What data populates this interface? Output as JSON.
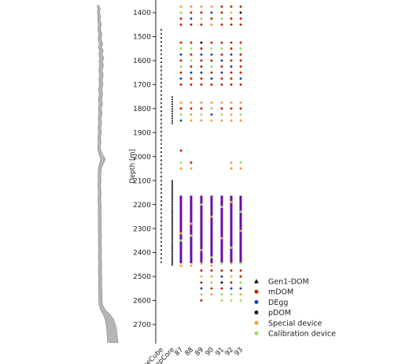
{
  "chart_data": {
    "type": "scatter",
    "ylabel": "Depth [m]",
    "xlabel": "",
    "ylim": [
      2780,
      1370
    ],
    "y_inverted": true,
    "yticks": [
      1400,
      1500,
      1600,
      1700,
      1800,
      1900,
      2000,
      2100,
      2200,
      2300,
      2400,
      2500,
      2600,
      2700
    ],
    "grid": false,
    "legend_position": "lower-right",
    "categories": [
      "IceCube",
      "DeepCore",
      "87",
      "88",
      "89",
      "90",
      "91",
      "92",
      "93"
    ],
    "legend": [
      {
        "label": "Gen1-DOM",
        "marker": "triangle",
        "color": "#111111"
      },
      {
        "label": "mDOM",
        "marker": "circle",
        "color": "#cc2200"
      },
      {
        "label": "DEgg",
        "marker": "circle",
        "color": "#1f3fbf"
      },
      {
        "label": "pDOM",
        "marker": "circle",
        "color": "#111111"
      },
      {
        "label": "Special device",
        "marker": "circle",
        "color": "#ff9a33"
      },
      {
        "label": "Calibration device",
        "marker": "circle",
        "color": "#99e05a"
      }
    ],
    "colors": {
      "gen1": "#111111",
      "mdom": "#cc2200",
      "degg": "#1f3fbf",
      "pdom": "#111111",
      "special": "#ff9a33",
      "calibration": "#99e05a",
      "dense_column": "#6a0dad",
      "dust_profile": "#b5b5b5"
    },
    "gen1_columns": [
      {
        "category": "IceCube",
        "depth_from": 1470,
        "depth_to": 2455,
        "spacing": 17
      },
      {
        "category": "DeepCore",
        "depth_from": 1750,
        "depth_to": 1860,
        "spacing": 10
      },
      {
        "category": "DeepCore",
        "depth_from": 2100,
        "depth_to": 2455,
        "spacing": 7
      }
    ],
    "dense_region": {
      "depth_from": 2163,
      "depth_to": 2445,
      "categories": [
        "87",
        "88",
        "89",
        "90",
        "91",
        "92",
        "93"
      ]
    },
    "upper_devices": [
      {
        "depth": 1375,
        "types": [
          "special",
          "special",
          "special",
          "special",
          "mdom",
          "mdom",
          "mdom"
        ]
      },
      {
        "depth": 1400,
        "types": [
          "calibration",
          "mdom",
          "mdom",
          "degg",
          "mdom",
          "calibration",
          "pdom"
        ]
      },
      {
        "depth": 1425,
        "types": [
          "mdom",
          "degg",
          "calibration",
          "mdom",
          "calibration",
          "mdom",
          "mdom"
        ]
      },
      {
        "depth": 1450,
        "types": [
          "mdom",
          "mdom",
          "mdom",
          "special",
          "mdom",
          "mdom",
          "mdom"
        ]
      },
      {
        "depth": 1525,
        "types": [
          "mdom",
          "mdom",
          "pdom",
          "mdom",
          "mdom",
          "mdom",
          "mdom"
        ]
      },
      {
        "depth": 1550,
        "types": [
          "calibration",
          "calibration",
          "mdom",
          "calibration",
          "calibration",
          "mdom",
          "calibration"
        ]
      },
      {
        "depth": 1575,
        "types": [
          "degg",
          "mdom",
          "degg",
          "degg",
          "mdom",
          "degg",
          "mdom"
        ]
      },
      {
        "depth": 1600,
        "types": [
          "mdom",
          "calibration",
          "mdom",
          "mdom",
          "degg",
          "mdom",
          "mdom"
        ]
      },
      {
        "depth": 1625,
        "types": [
          "calibration",
          "mdom",
          "mdom",
          "calibration",
          "mdom",
          "degg",
          "mdom"
        ]
      },
      {
        "depth": 1650,
        "types": [
          "mdom",
          "degg",
          "degg",
          "mdom",
          "degg",
          "mdom",
          "mdom"
        ]
      },
      {
        "depth": 1675,
        "types": [
          "degg",
          "mdom",
          "mdom",
          "degg",
          "mdom",
          "mdom",
          "degg"
        ]
      },
      {
        "depth": 1700,
        "types": [
          "mdom",
          "mdom",
          "mdom",
          "mdom",
          "mdom",
          "mdom",
          "mdom"
        ]
      },
      {
        "depth": 1775,
        "types": [
          "special",
          "special",
          "special",
          "special",
          "special",
          "special",
          "special"
        ]
      },
      {
        "depth": 1800,
        "types": [
          "mdom",
          "mdom",
          "mdom",
          "calibration",
          "mdom",
          "mdom",
          "mdom"
        ]
      },
      {
        "depth": 1825,
        "types": [
          "calibration",
          "special",
          "calibration",
          "degg",
          "calibration",
          "special",
          "calibration"
        ]
      },
      {
        "depth": 1850,
        "types": [
          "degg",
          "special",
          "special",
          "special",
          "special",
          "special",
          "special"
        ]
      },
      {
        "depth": 1975,
        "types": [
          "mdom",
          null,
          null,
          null,
          null,
          null,
          null
        ]
      },
      {
        "depth": 2025,
        "types": [
          "calibration",
          "mdom",
          null,
          null,
          null,
          "special",
          "calibration"
        ]
      },
      {
        "depth": 2050,
        "types": [
          "special",
          "special",
          null,
          null,
          null,
          "special",
          "special"
        ]
      }
    ],
    "dense_embedded_points": [
      {
        "category": "87",
        "depth": 2320,
        "type": "special"
      },
      {
        "category": "87",
        "depth": 2350,
        "type": "calibration"
      },
      {
        "category": "88",
        "depth": 2280,
        "type": "special"
      },
      {
        "category": "88",
        "depth": 2330,
        "type": "calibration"
      },
      {
        "category": "89",
        "depth": 2200,
        "type": "calibration"
      },
      {
        "category": "89",
        "depth": 2390,
        "type": "special"
      },
      {
        "category": "90",
        "depth": 2250,
        "type": "special"
      },
      {
        "category": "90",
        "depth": 2420,
        "type": "calibration"
      },
      {
        "category": "91",
        "depth": 2210,
        "type": "calibration"
      },
      {
        "category": "91",
        "depth": 2340,
        "type": "special"
      },
      {
        "category": "92",
        "depth": 2190,
        "type": "special"
      },
      {
        "category": "92",
        "depth": 2380,
        "type": "calibration"
      },
      {
        "category": "93",
        "depth": 2230,
        "type": "calibration"
      },
      {
        "category": "93",
        "depth": 2310,
        "type": "special"
      }
    ],
    "dense_bottom_caps": [
      {
        "category": "87",
        "depth": 2455,
        "type": "special"
      },
      {
        "category": "88",
        "depth": 2455,
        "type": "special"
      },
      {
        "category": "89",
        "depth": 2445,
        "type": "special"
      },
      {
        "category": "90",
        "depth": 2455,
        "type": "special"
      },
      {
        "category": "91",
        "depth": 2445,
        "type": "calibration"
      },
      {
        "category": "92",
        "depth": 2445,
        "type": "special"
      },
      {
        "category": "93",
        "depth": 2445,
        "type": "calibration"
      }
    ],
    "lower_devices": [
      {
        "depth": 2475,
        "types": [
          null,
          null,
          "mdom",
          "mdom",
          "mdom",
          "mdom",
          "mdom"
        ]
      },
      {
        "depth": 2500,
        "types": [
          null,
          null,
          "calibration",
          "special",
          "degg",
          "calibration",
          "mdom"
        ]
      },
      {
        "depth": 2525,
        "types": [
          null,
          null,
          "mdom",
          "calibration",
          "pdom",
          "mdom",
          "calibration"
        ]
      },
      {
        "depth": 2550,
        "types": [
          null,
          null,
          "degg",
          "mdom",
          "mdom",
          "degg",
          "degg"
        ]
      },
      {
        "depth": 2575,
        "types": [
          null,
          null,
          "calibration",
          "special",
          "calibration",
          "calibration",
          "special"
        ]
      },
      {
        "depth": 2600,
        "types": [
          null,
          null,
          "mdom",
          null,
          "calibration",
          "calibration",
          "calibration"
        ]
      }
    ],
    "dust_profile": [
      [
        1370,
        0.15
      ],
      [
        1385,
        0.35
      ],
      [
        1400,
        0.2
      ],
      [
        1415,
        0.45
      ],
      [
        1430,
        0.3
      ],
      [
        1450,
        0.55
      ],
      [
        1470,
        0.4
      ],
      [
        1490,
        0.65
      ],
      [
        1510,
        0.5
      ],
      [
        1530,
        0.8
      ],
      [
        1545,
        0.62
      ],
      [
        1560,
        0.9
      ],
      [
        1575,
        0.7
      ],
      [
        1590,
        1.0
      ],
      [
        1605,
        0.75
      ],
      [
        1620,
        0.95
      ],
      [
        1640,
        0.7
      ],
      [
        1660,
        0.9
      ],
      [
        1680,
        0.72
      ],
      [
        1700,
        0.85
      ],
      [
        1720,
        0.65
      ],
      [
        1740,
        0.8
      ],
      [
        1760,
        0.6
      ],
      [
        1780,
        0.75
      ],
      [
        1800,
        0.55
      ],
      [
        1820,
        0.7
      ],
      [
        1840,
        0.5
      ],
      [
        1860,
        0.62
      ],
      [
        1880,
        0.45
      ],
      [
        1900,
        0.55
      ],
      [
        1920,
        0.4
      ],
      [
        1940,
        0.48
      ],
      [
        1960,
        0.35
      ],
      [
        1975,
        0.45
      ],
      [
        1990,
        0.75
      ],
      [
        2000,
        1.0
      ],
      [
        2010,
        1.3
      ],
      [
        2020,
        1.1
      ],
      [
        2030,
        0.9
      ],
      [
        2045,
        0.6
      ],
      [
        2060,
        0.5
      ],
      [
        2080,
        0.45
      ],
      [
        2100,
        0.5
      ],
      [
        2120,
        0.42
      ],
      [
        2150,
        0.5
      ],
      [
        2180,
        0.45
      ],
      [
        2210,
        0.52
      ],
      [
        2240,
        0.48
      ],
      [
        2270,
        0.55
      ],
      [
        2300,
        0.5
      ],
      [
        2330,
        0.58
      ],
      [
        2360,
        0.52
      ],
      [
        2390,
        0.6
      ],
      [
        2420,
        0.55
      ],
      [
        2450,
        0.62
      ],
      [
        2480,
        0.58
      ],
      [
        2510,
        0.65
      ],
      [
        2540,
        0.6
      ],
      [
        2570,
        0.68
      ],
      [
        2600,
        0.65
      ],
      [
        2620,
        0.8
      ],
      [
        2640,
        1.3
      ],
      [
        2660,
        2.2
      ],
      [
        2680,
        2.8
      ],
      [
        2700,
        3.1
      ],
      [
        2720,
        3.3
      ],
      [
        2740,
        3.4
      ],
      [
        2760,
        3.5
      ],
      [
        2775,
        3.6
      ]
    ]
  }
}
